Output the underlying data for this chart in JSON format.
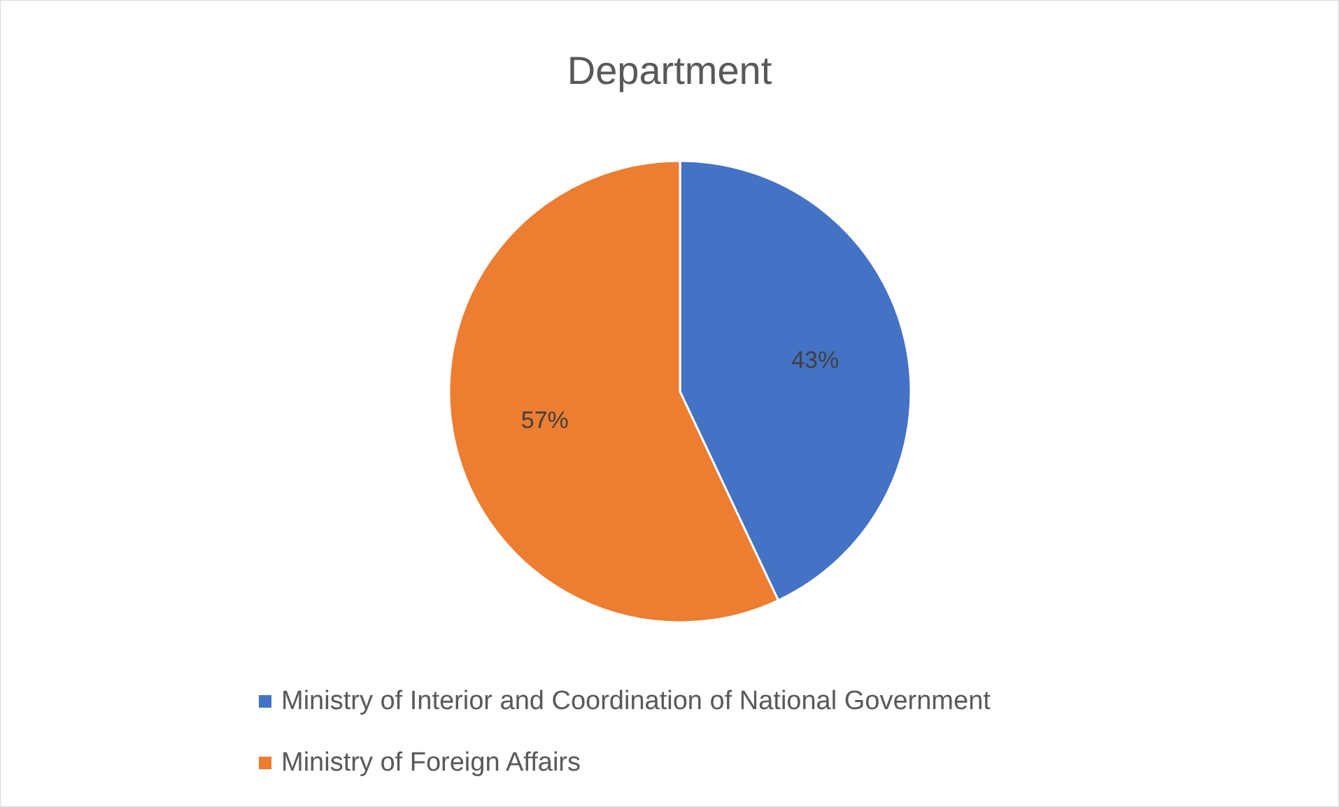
{
  "chart_data": {
    "type": "pie",
    "title": "Department",
    "categories": [
      "Ministry of Interior and Coordination of National Government",
      "Ministry of Foreign Affairs"
    ],
    "values": [
      43,
      57
    ],
    "colors": [
      "#4472c4",
      "#ed7d31"
    ],
    "value_labels": [
      "43%",
      "57%"
    ],
    "legend": "bottom"
  }
}
